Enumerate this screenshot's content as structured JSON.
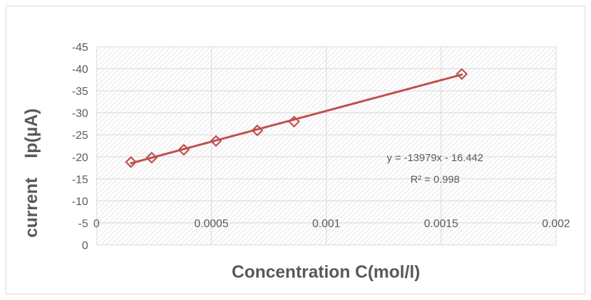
{
  "chart_data": {
    "type": "scatter",
    "xlabel": "Concentration C(mol/l)",
    "ylabel": "current    Ip(µA)",
    "xlim": [
      0,
      0.002
    ],
    "ylim": [
      0,
      -45
    ],
    "x_ticks": [
      "0",
      "0.0005",
      "0.001",
      "0.0015",
      "0.002"
    ],
    "x_tick_values": [
      0,
      0.0005,
      0.001,
      0.0015,
      0.002
    ],
    "y_ticks": [
      "0",
      "-5",
      "-10",
      "-15",
      "-20",
      "-25",
      "-30",
      "-35",
      "-40",
      "-45"
    ],
    "y_tick_values": [
      0,
      -5,
      -10,
      -15,
      -20,
      -25,
      -30,
      -35,
      -40,
      -45
    ],
    "grid": true,
    "legend": "none",
    "series": [
      {
        "marker": "diamond-open",
        "color": "#c0504d",
        "x": [
          0.00015,
          0.00024,
          0.00038,
          0.00052,
          0.0007,
          0.00086,
          0.00159
        ],
        "y": [
          -18.8,
          -19.8,
          -21.6,
          -23.6,
          -26.0,
          -28.0,
          -38.8
        ]
      }
    ],
    "trendline": {
      "type": "linear",
      "slope": -13979,
      "intercept": -16.442,
      "x_range": [
        0.00015,
        0.00159
      ],
      "color": "#c0504d",
      "equation_label": "y = -13979x - 16.442",
      "r2_label": "R² = 0.998"
    }
  }
}
